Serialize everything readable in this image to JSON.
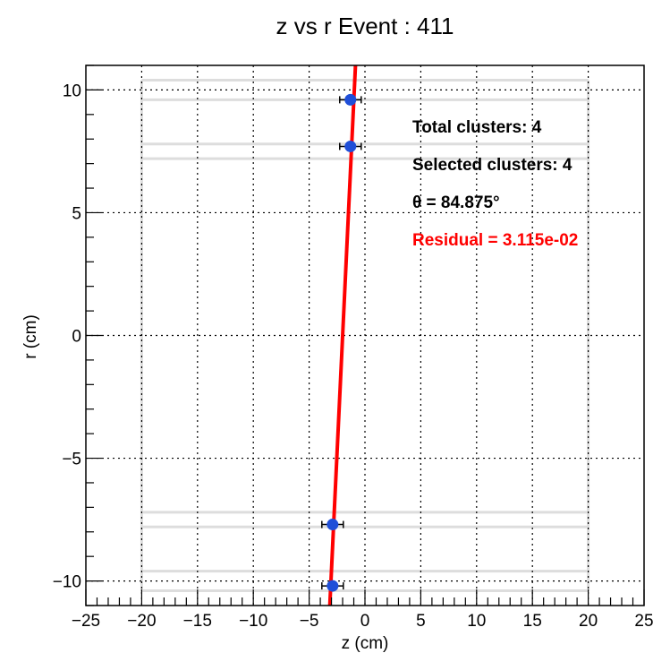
{
  "chart_data": {
    "type": "scatter",
    "title": "z vs r Event : 411",
    "xlabel": "z (cm)",
    "ylabel": "r (cm)",
    "xlim": [
      -25,
      25
    ],
    "ylim": [
      -11,
      11
    ],
    "xticks": [
      -25,
      -20,
      -15,
      -10,
      -5,
      0,
      5,
      10,
      15,
      20,
      25
    ],
    "xtick_labels": [
      "−25",
      "−20",
      "−15",
      "−10",
      "−5",
      "0",
      "5",
      "10",
      "15",
      "20",
      "25"
    ],
    "yticks": [
      -10,
      -5,
      0,
      5,
      10
    ],
    "ytick_labels": [
      "−10",
      "−5",
      "0",
      "5",
      "10"
    ],
    "grid": true,
    "points": [
      {
        "z": -1.3,
        "r": 9.6
      },
      {
        "z": -1.3,
        "r": 7.7
      },
      {
        "z": -2.9,
        "r": -7.7
      },
      {
        "z": -2.9,
        "r": -10.2
      }
    ],
    "point_color": "#1f4fd8",
    "fit_line": {
      "z_at_r_min": -3.15,
      "r_min": -11,
      "z_at_r_max": -0.85,
      "r_max": 11,
      "color": "#ff0000"
    },
    "detector_layers": {
      "z_range": [
        -20,
        20
      ],
      "r_lines": [
        10.4,
        9.6,
        7.8,
        7.2,
        -7.2,
        -7.8,
        -9.6,
        -10.4
      ],
      "color": "#dddddd"
    },
    "annotations": [
      {
        "text": "Total clusters: 4",
        "color": "#000000"
      },
      {
        "text": "Selected clusters: 4",
        "color": "#000000"
      },
      {
        "text": "θ = 84.875°",
        "color": "#000000"
      },
      {
        "text": "Residual = 3.115e-02",
        "color": "#ff0000"
      }
    ]
  }
}
